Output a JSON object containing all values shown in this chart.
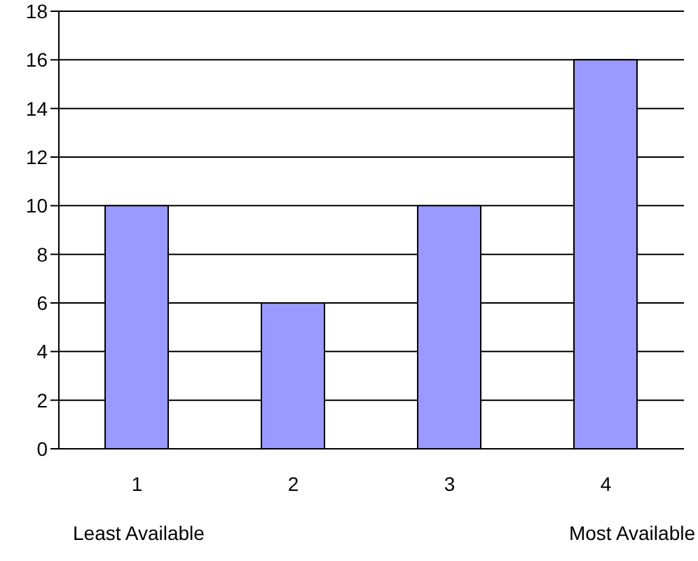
{
  "chart_data": {
    "type": "bar",
    "categories": [
      "1",
      "2",
      "3",
      "4"
    ],
    "values": [
      10,
      6,
      10,
      16
    ],
    "color": "#9999ff",
    "ylim": [
      0,
      18
    ],
    "yticks": [
      0,
      2,
      4,
      6,
      8,
      10,
      12,
      14,
      16,
      18
    ],
    "grid": "y",
    "annotations": [
      "Least Available",
      "Most Available"
    ]
  }
}
